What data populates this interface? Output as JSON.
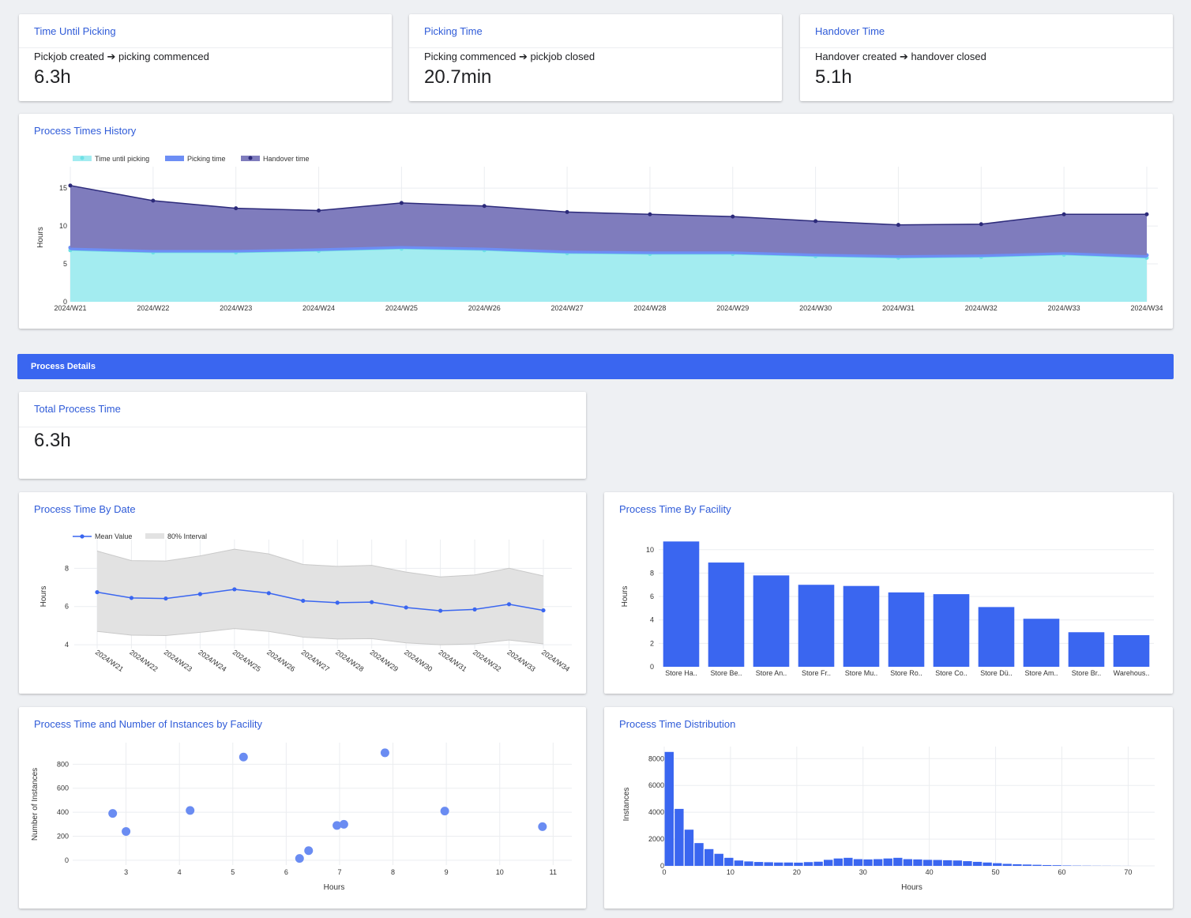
{
  "kpis": [
    {
      "title": "Time Until Picking",
      "subtitle": "Pickjob created ➔ picking commenced",
      "value": "6.3h"
    },
    {
      "title": "Picking Time",
      "subtitle": "Picking commenced ➔ pickjob closed",
      "value": "20.7min"
    },
    {
      "title": "Handover Time",
      "subtitle": "Handover created ➔ handover closed",
      "value": "5.1h"
    }
  ],
  "history": {
    "title": "Process Times History"
  },
  "section": {
    "banner": "Process Details"
  },
  "total": {
    "title": "Total Process Time",
    "value": "6.3h"
  },
  "by_date": {
    "title": "Process Time By Date"
  },
  "by_facility": {
    "title": "Process Time By Facility"
  },
  "scatter": {
    "title": "Process Time and Number of Instances by Facility"
  },
  "distribution": {
    "title": "Process Time Distribution"
  },
  "colors": {
    "accent": "#3a66f0",
    "title": "#2f5bd8",
    "cyan": "#a3ecf0",
    "cyan_line": "#6ee0e6",
    "picking": "#6d8ef5",
    "handover_fill": "#7f7cbd",
    "handover_line": "#2c2a7a",
    "interval": "#e2e2e2",
    "interval_line": "#c9c9c9"
  },
  "chart_data": [
    {
      "id": "history",
      "type": "area",
      "stacked": true,
      "categories": [
        "2024/W21",
        "2024/W22",
        "2024/W23",
        "2024/W24",
        "2024/W25",
        "2024/W26",
        "2024/W27",
        "2024/W28",
        "2024/W29",
        "2024/W30",
        "2024/W31",
        "2024/W32",
        "2024/W33",
        "2024/W34"
      ],
      "series": [
        {
          "name": "Time until picking",
          "values": [
            6.8,
            6.5,
            6.5,
            6.7,
            7.0,
            6.8,
            6.4,
            6.3,
            6.3,
            6.0,
            5.8,
            5.9,
            6.2,
            5.8
          ]
        },
        {
          "name": "Picking time",
          "values": [
            0.35,
            0.35,
            0.35,
            0.35,
            0.35,
            0.35,
            0.35,
            0.35,
            0.35,
            0.35,
            0.35,
            0.35,
            0.35,
            0.35
          ]
        },
        {
          "name": "Handover time",
          "values": [
            8.2,
            6.5,
            5.5,
            5.0,
            5.7,
            5.5,
            5.1,
            4.9,
            4.6,
            4.3,
            4.0,
            4.0,
            5.0,
            5.4
          ]
        }
      ],
      "ylabel": "Hours",
      "yticks": [
        0,
        5,
        10,
        15
      ],
      "ylim": [
        0,
        17
      ]
    },
    {
      "id": "by_date",
      "type": "line",
      "categories": [
        "2024/W21",
        "2024/W22",
        "2024/W23",
        "2024/W24",
        "2024/W25",
        "2024/W26",
        "2024/W27",
        "2024/W28",
        "2024/W29",
        "2024/W30",
        "2024/W31",
        "2024/W32",
        "2024/W33",
        "2024/W34"
      ],
      "series": [
        {
          "name": "Mean Value",
          "values": [
            6.75,
            6.45,
            6.42,
            6.65,
            6.9,
            6.7,
            6.3,
            6.2,
            6.23,
            5.95,
            5.78,
            5.85,
            6.12,
            5.8
          ]
        }
      ],
      "interval": {
        "name": "80% Interval",
        "upper": [
          8.9,
          8.4,
          8.38,
          8.65,
          9.0,
          8.75,
          8.2,
          8.1,
          8.15,
          7.8,
          7.55,
          7.65,
          8.0,
          7.6
        ],
        "lower": [
          4.7,
          4.5,
          4.48,
          4.65,
          4.85,
          4.7,
          4.4,
          4.3,
          4.32,
          4.1,
          4.0,
          4.05,
          4.25,
          4.05
        ]
      },
      "ylabel": "Hours",
      "yticks": [
        4,
        6,
        8
      ],
      "ylim": [
        3.8,
        9.5
      ]
    },
    {
      "id": "by_facility",
      "type": "bar",
      "categories": [
        "Store Ha..",
        "Store Be..",
        "Store An..",
        "Store Fr..",
        "Store Mu..",
        "Store Ro..",
        "Store Co..",
        "Store Dü..",
        "Store Am..",
        "Store Br..",
        "Warehous.."
      ],
      "values": [
        10.7,
        8.9,
        7.8,
        7.0,
        6.9,
        6.35,
        6.2,
        5.1,
        4.1,
        2.95,
        2.7
      ],
      "ylabel": "Hours",
      "yticks": [
        0,
        2,
        4,
        6,
        8,
        10
      ],
      "ylim": [
        0,
        11.4
      ]
    },
    {
      "id": "scatter",
      "type": "scatter",
      "points": [
        {
          "x": 2.75,
          "y": 390
        },
        {
          "x": 3.0,
          "y": 240
        },
        {
          "x": 4.2,
          "y": 415
        },
        {
          "x": 5.2,
          "y": 860
        },
        {
          "x": 6.25,
          "y": 15
        },
        {
          "x": 6.42,
          "y": 80
        },
        {
          "x": 6.95,
          "y": 290
        },
        {
          "x": 7.08,
          "y": 300
        },
        {
          "x": 7.85,
          "y": 895
        },
        {
          "x": 8.97,
          "y": 410
        },
        {
          "x": 10.8,
          "y": 280
        }
      ],
      "xlabel": "Hours",
      "ylabel": "Number of Instances",
      "xticks": [
        3,
        4,
        5,
        6,
        7,
        8,
        9,
        10,
        11
      ],
      "yticks": [
        0,
        200,
        400,
        600,
        800
      ],
      "xlim": [
        2.0,
        11.35
      ],
      "ylim": [
        -40,
        980
      ]
    },
    {
      "id": "distribution",
      "type": "bar",
      "subtype": "histogram",
      "bin_width": 1.5,
      "bin_start": 0,
      "values": [
        8500,
        4250,
        2700,
        1700,
        1250,
        900,
        600,
        400,
        330,
        290,
        270,
        250,
        250,
        240,
        280,
        310,
        450,
        550,
        600,
        500,
        480,
        500,
        550,
        600,
        500,
        480,
        450,
        440,
        420,
        400,
        350,
        300,
        250,
        200,
        150,
        120,
        100,
        80,
        60,
        50,
        30,
        20,
        15,
        10,
        8,
        5,
        3
      ],
      "xlabel": "Hours",
      "ylabel": "Instances",
      "xticks": [
        0,
        10,
        20,
        30,
        40,
        50,
        60,
        70
      ],
      "yticks": [
        0,
        2000,
        4000,
        6000,
        8000
      ],
      "xlim": [
        0,
        74
      ],
      "ylim": [
        0,
        8900
      ]
    }
  ]
}
